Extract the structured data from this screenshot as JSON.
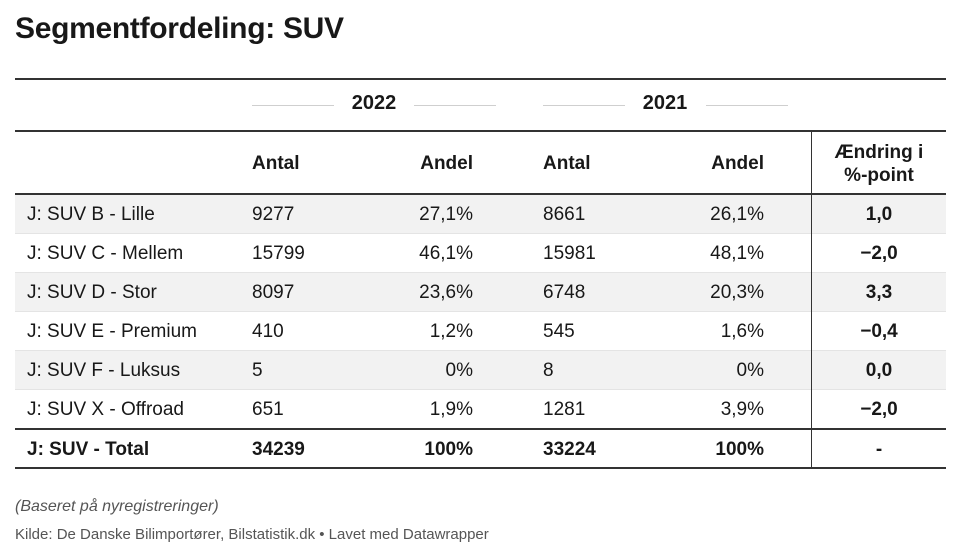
{
  "title": "Segmentfordeling: SUV",
  "years": [
    "2022",
    "2021"
  ],
  "columns": {
    "count": "Antal",
    "share": "Andel",
    "change_line1": "Ændring i",
    "change_line2": "%-point"
  },
  "rows": [
    {
      "name": "J: SUV B - Lille",
      "count_2022": "9277",
      "share_2022": "27,1%",
      "count_2021": "8661",
      "share_2021": "26,1%",
      "change": "1,0"
    },
    {
      "name": "J: SUV C - Mellem",
      "count_2022": "15799",
      "share_2022": "46,1%",
      "count_2021": "15981",
      "share_2021": "48,1%",
      "change": "−2,0"
    },
    {
      "name": "J: SUV D - Stor",
      "count_2022": "8097",
      "share_2022": "23,6%",
      "count_2021": "6748",
      "share_2021": "20,3%",
      "change": "3,3"
    },
    {
      "name": "J: SUV E - Premium",
      "count_2022": "410",
      "share_2022": "1,2%",
      "count_2021": "545",
      "share_2021": "1,6%",
      "change": "−0,4"
    },
    {
      "name": "J: SUV F - Luksus",
      "count_2022": "5",
      "share_2022": "0%",
      "count_2021": "8",
      "share_2021": "0%",
      "change": "0,0"
    },
    {
      "name": "J: SUV X - Offroad",
      "count_2022": "651",
      "share_2022": "1,9%",
      "count_2021": "1281",
      "share_2021": "3,9%",
      "change": "−2,0"
    }
  ],
  "total": {
    "name": "J: SUV - Total",
    "count_2022": "34239",
    "share_2022": "100%",
    "count_2021": "33224",
    "share_2021": "100%",
    "change": "-"
  },
  "note": "(Baseret på nyregistreringer)",
  "source": "Kilde: De Danske Bilimportører, Bilstatistik.dk • Lavet med Datawrapper",
  "colors": {
    "row_shade": "#f2f2f2",
    "rule": "#333333"
  }
}
